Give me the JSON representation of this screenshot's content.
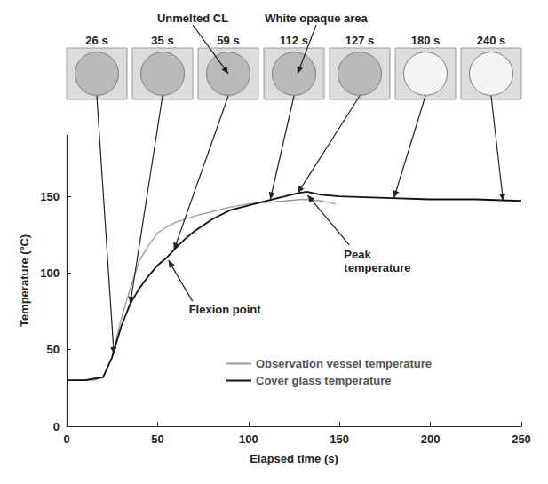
{
  "chart_data": {
    "type": "line",
    "x_label": "Elapsed time (s)",
    "y_label": "Temperature (ºC)",
    "xlim": [
      0,
      250
    ],
    "xticks": [
      0,
      50,
      100,
      150,
      200,
      250
    ],
    "ylim": [
      0,
      190
    ],
    "yticks": [
      0,
      50,
      100,
      150
    ],
    "grid": false,
    "legend": "bottom",
    "series": [
      {
        "name": "Observation vessel temperature",
        "color": "#9a9a9a",
        "x": [
          0,
          10,
          15,
          20,
          25,
          30,
          35,
          40,
          45,
          50,
          55,
          60,
          70,
          80,
          90,
          100,
          110,
          120,
          130,
          140,
          148
        ],
        "values": [
          30,
          30,
          30,
          32,
          45,
          70,
          90,
          108,
          118,
          126,
          130,
          133,
          137,
          140,
          143,
          145,
          146,
          147,
          148,
          147,
          145
        ]
      },
      {
        "name": "Cover glass temperature",
        "color": "#111111",
        "x": [
          0,
          10,
          20,
          25,
          30,
          35,
          40,
          45,
          50,
          55,
          59,
          65,
          70,
          80,
          90,
          100,
          110,
          120,
          127,
          132,
          140,
          150,
          175,
          200,
          225,
          250
        ],
        "values": [
          30,
          30,
          32,
          45,
          65,
          80,
          90,
          98,
          105,
          110,
          115,
          122,
          127,
          135,
          141,
          144,
          147,
          150,
          152,
          153,
          151,
          150,
          149,
          148,
          148,
          147
        ]
      }
    ],
    "annotations": [
      {
        "text": "Flexion point",
        "x": 55,
        "y": 110
      },
      {
        "text": "Peak temperature",
        "x": 132,
        "y": 153
      }
    ],
    "photos": [
      {
        "label": "26 s",
        "x": 26,
        "y": 47
      },
      {
        "label": "35 s",
        "x": 35,
        "y": 80
      },
      {
        "label": "59 s",
        "x": 59,
        "y": 115
      },
      {
        "label": "112 s",
        "x": 112,
        "y": 148
      },
      {
        "label": "127 s",
        "x": 127,
        "y": 152
      },
      {
        "label": "180 s",
        "x": 180,
        "y": 149
      },
      {
        "label": "240 s",
        "x": 240,
        "y": 147
      }
    ],
    "photo_notes": [
      {
        "text": "Unmelted CL",
        "photo": "59 s"
      },
      {
        "text": "White opaque area",
        "photo": "112 s"
      }
    ]
  }
}
